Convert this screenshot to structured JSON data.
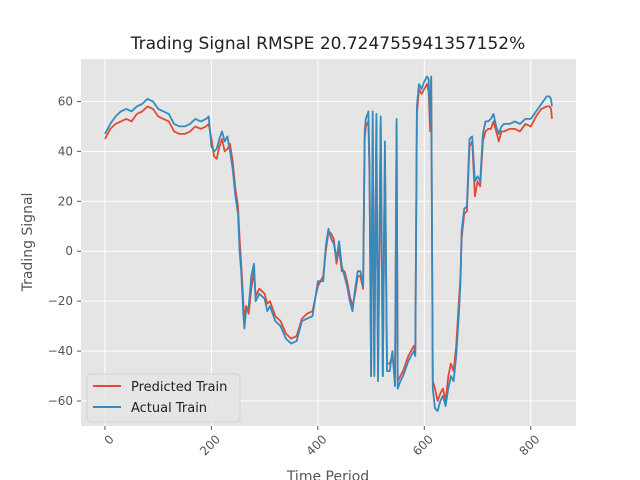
{
  "chart_data": {
    "type": "line",
    "title": "Trading Signal RMSPE 20.724755941357152%",
    "xlabel": "Time Period",
    "ylabel": "Trading Signal",
    "xlim": [
      -45,
      885
    ],
    "ylim": [
      -70,
      77
    ],
    "x_ticks": [
      0,
      200,
      400,
      600,
      800
    ],
    "y_ticks": [
      -60,
      -40,
      -20,
      0,
      20,
      40,
      60
    ],
    "x_tick_labels": [
      "0",
      "200",
      "400",
      "600",
      "800"
    ],
    "y_tick_labels": [
      "−60",
      "−40",
      "−20",
      "0",
      "20",
      "40",
      "60"
    ],
    "grid": true,
    "legend_position": "lower-left",
    "colors": {
      "plot_bg": "#E5E5E5",
      "grid": "#FFFFFF"
    },
    "series": [
      {
        "name": "Predicted Train",
        "color": "#E24A33",
        "points": [
          [
            0,
            45
          ],
          [
            10,
            49
          ],
          [
            20,
            51
          ],
          [
            30,
            52
          ],
          [
            40,
            53
          ],
          [
            50,
            52
          ],
          [
            60,
            55
          ],
          [
            70,
            56
          ],
          [
            80,
            58
          ],
          [
            90,
            57
          ],
          [
            100,
            54
          ],
          [
            110,
            53
          ],
          [
            120,
            52
          ],
          [
            130,
            48
          ],
          [
            140,
            47
          ],
          [
            150,
            47
          ],
          [
            160,
            48
          ],
          [
            170,
            50
          ],
          [
            180,
            49
          ],
          [
            190,
            50
          ],
          [
            195,
            51
          ],
          [
            200,
            45
          ],
          [
            205,
            38
          ],
          [
            210,
            37
          ],
          [
            215,
            42
          ],
          [
            220,
            45
          ],
          [
            225,
            40
          ],
          [
            230,
            41
          ],
          [
            235,
            43
          ],
          [
            240,
            36
          ],
          [
            245,
            25
          ],
          [
            250,
            18
          ],
          [
            253,
            5
          ],
          [
            256,
            -5
          ],
          [
            260,
            -20
          ],
          [
            262,
            -29
          ],
          [
            265,
            -22
          ],
          [
            270,
            -25
          ],
          [
            275,
            -15
          ],
          [
            280,
            -8
          ],
          [
            283,
            -18
          ],
          [
            290,
            -15
          ],
          [
            300,
            -17
          ],
          [
            305,
            -21
          ],
          [
            310,
            -20
          ],
          [
            320,
            -26
          ],
          [
            330,
            -28
          ],
          [
            340,
            -33
          ],
          [
            350,
            -35
          ],
          [
            360,
            -34
          ],
          [
            370,
            -27
          ],
          [
            380,
            -25
          ],
          [
            390,
            -24
          ],
          [
            400,
            -14
          ],
          [
            410,
            -10
          ],
          [
            415,
            0
          ],
          [
            420,
            8
          ],
          [
            425,
            7
          ],
          [
            430,
            5
          ],
          [
            435,
            -5
          ],
          [
            440,
            1
          ],
          [
            445,
            -8
          ],
          [
            450,
            -8
          ],
          [
            455,
            -12
          ],
          [
            460,
            -18
          ],
          [
            465,
            -22
          ],
          [
            470,
            -17
          ],
          [
            475,
            -10
          ],
          [
            480,
            -10
          ],
          [
            485,
            -15
          ],
          [
            488,
            45
          ],
          [
            490,
            50
          ],
          [
            495,
            52
          ],
          [
            497,
            30
          ],
          [
            500,
            -50
          ],
          [
            503,
            50
          ],
          [
            506,
            -48
          ],
          [
            510,
            52
          ],
          [
            513,
            -50
          ],
          [
            518,
            50
          ],
          [
            522,
            -50
          ],
          [
            526,
            40
          ],
          [
            530,
            -45
          ],
          [
            535,
            -45
          ],
          [
            540,
            -42
          ],
          [
            545,
            -50
          ],
          [
            548,
            50
          ],
          [
            550,
            -52
          ],
          [
            555,
            -50
          ],
          [
            560,
            -48
          ],
          [
            565,
            -45
          ],
          [
            570,
            -42
          ],
          [
            575,
            -40
          ],
          [
            580,
            -38
          ],
          [
            583,
            -40
          ],
          [
            586,
            55
          ],
          [
            590,
            65
          ],
          [
            595,
            63
          ],
          [
            600,
            65
          ],
          [
            605,
            67
          ],
          [
            608,
            64
          ],
          [
            611,
            48
          ],
          [
            613,
            68
          ],
          [
            616,
            -52
          ],
          [
            620,
            -55
          ],
          [
            625,
            -60
          ],
          [
            630,
            -57
          ],
          [
            635,
            -55
          ],
          [
            640,
            -60
          ],
          [
            645,
            -50
          ],
          [
            650,
            -45
          ],
          [
            655,
            -48
          ],
          [
            660,
            -38
          ],
          [
            665,
            -20
          ],
          [
            668,
            -10
          ],
          [
            670,
            5
          ],
          [
            675,
            15
          ],
          [
            680,
            16
          ],
          [
            685,
            42
          ],
          [
            690,
            44
          ],
          [
            695,
            22
          ],
          [
            700,
            28
          ],
          [
            705,
            26
          ],
          [
            710,
            44
          ],
          [
            715,
            48
          ],
          [
            720,
            49
          ],
          [
            725,
            49
          ],
          [
            730,
            52
          ],
          [
            735,
            48
          ],
          [
            740,
            44
          ],
          [
            745,
            48
          ],
          [
            750,
            48
          ],
          [
            760,
            49
          ],
          [
            770,
            49
          ],
          [
            780,
            48
          ],
          [
            790,
            51
          ],
          [
            800,
            50
          ],
          [
            810,
            54
          ],
          [
            820,
            57
          ],
          [
            830,
            58
          ],
          [
            835,
            58
          ],
          [
            838,
            57
          ],
          [
            840,
            53
          ]
        ]
      },
      {
        "name": "Actual Train",
        "color": "#348ABD",
        "points": [
          [
            0,
            47
          ],
          [
            10,
            51
          ],
          [
            20,
            54
          ],
          [
            30,
            56
          ],
          [
            40,
            57
          ],
          [
            50,
            56
          ],
          [
            60,
            58
          ],
          [
            70,
            59
          ],
          [
            80,
            61
          ],
          [
            90,
            60
          ],
          [
            100,
            57
          ],
          [
            110,
            56
          ],
          [
            120,
            55
          ],
          [
            130,
            51
          ],
          [
            140,
            50
          ],
          [
            150,
            50
          ],
          [
            160,
            51
          ],
          [
            170,
            53
          ],
          [
            180,
            52
          ],
          [
            190,
            53
          ],
          [
            195,
            54
          ],
          [
            200,
            42
          ],
          [
            205,
            40
          ],
          [
            210,
            41
          ],
          [
            215,
            45
          ],
          [
            220,
            48
          ],
          [
            225,
            44
          ],
          [
            230,
            46
          ],
          [
            235,
            40
          ],
          [
            240,
            33
          ],
          [
            245,
            22
          ],
          [
            250,
            15
          ],
          [
            253,
            0
          ],
          [
            256,
            -8
          ],
          [
            260,
            -25
          ],
          [
            262,
            -31
          ],
          [
            265,
            -24
          ],
          [
            270,
            -22
          ],
          [
            275,
            -10
          ],
          [
            280,
            -5
          ],
          [
            283,
            -20
          ],
          [
            290,
            -17
          ],
          [
            300,
            -19
          ],
          [
            305,
            -24
          ],
          [
            310,
            -22
          ],
          [
            320,
            -28
          ],
          [
            330,
            -30
          ],
          [
            340,
            -35
          ],
          [
            350,
            -37
          ],
          [
            360,
            -36
          ],
          [
            370,
            -28
          ],
          [
            380,
            -27
          ],
          [
            390,
            -26
          ],
          [
            400,
            -12
          ],
          [
            410,
            -12
          ],
          [
            415,
            2
          ],
          [
            420,
            9
          ],
          [
            425,
            5
          ],
          [
            430,
            3
          ],
          [
            435,
            -3
          ],
          [
            440,
            4
          ],
          [
            445,
            -6
          ],
          [
            450,
            -10
          ],
          [
            455,
            -14
          ],
          [
            460,
            -20
          ],
          [
            465,
            -24
          ],
          [
            470,
            -15
          ],
          [
            475,
            -8
          ],
          [
            480,
            -8
          ],
          [
            485,
            -14
          ],
          [
            488,
            48
          ],
          [
            490,
            53
          ],
          [
            495,
            56
          ],
          [
            497,
            35
          ],
          [
            500,
            -50
          ],
          [
            503,
            56
          ],
          [
            506,
            -50
          ],
          [
            510,
            55
          ],
          [
            513,
            -52
          ],
          [
            518,
            54
          ],
          [
            522,
            -50
          ],
          [
            526,
            44
          ],
          [
            530,
            -48
          ],
          [
            535,
            -48
          ],
          [
            540,
            -40
          ],
          [
            545,
            -54
          ],
          [
            548,
            53
          ],
          [
            550,
            -55
          ],
          [
            555,
            -52
          ],
          [
            560,
            -50
          ],
          [
            565,
            -47
          ],
          [
            570,
            -44
          ],
          [
            575,
            -42
          ],
          [
            580,
            -40
          ],
          [
            583,
            -42
          ],
          [
            586,
            58
          ],
          [
            590,
            67
          ],
          [
            595,
            65
          ],
          [
            600,
            68
          ],
          [
            605,
            70
          ],
          [
            608,
            69
          ],
          [
            611,
            52
          ],
          [
            613,
            70
          ],
          [
            616,
            -55
          ],
          [
            620,
            -63
          ],
          [
            625,
            -64
          ],
          [
            630,
            -60
          ],
          [
            635,
            -58
          ],
          [
            640,
            -62
          ],
          [
            645,
            -55
          ],
          [
            650,
            -50
          ],
          [
            655,
            -52
          ],
          [
            660,
            -42
          ],
          [
            665,
            -25
          ],
          [
            668,
            -12
          ],
          [
            670,
            8
          ],
          [
            675,
            17
          ],
          [
            680,
            18
          ],
          [
            685,
            45
          ],
          [
            690,
            46
          ],
          [
            695,
            28
          ],
          [
            700,
            30
          ],
          [
            705,
            28
          ],
          [
            710,
            47
          ],
          [
            715,
            52
          ],
          [
            720,
            52
          ],
          [
            725,
            53
          ],
          [
            730,
            55
          ],
          [
            735,
            50
          ],
          [
            740,
            47
          ],
          [
            745,
            50
          ],
          [
            750,
            51
          ],
          [
            760,
            51
          ],
          [
            770,
            52
          ],
          [
            780,
            51
          ],
          [
            790,
            53
          ],
          [
            800,
            53
          ],
          [
            810,
            56
          ],
          [
            820,
            59
          ],
          [
            830,
            62
          ],
          [
            835,
            62
          ],
          [
            838,
            61
          ],
          [
            840,
            58
          ]
        ]
      }
    ]
  }
}
